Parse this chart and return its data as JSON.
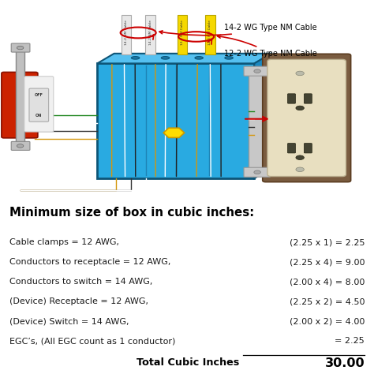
{
  "title": "Minimum size of box in cubic inches:",
  "rows": [
    {
      "label": "Cable clamps = 12 AWG,",
      "calc": "(2.25 x 1) = 2.25",
      "underline": false
    },
    {
      "label": "Conductors to receptacle = 12 AWG,",
      "calc": "(2.25 x 4) = 9.00",
      "underline": false
    },
    {
      "label": "Conductors to switch = 14 AWG,",
      "calc": "(2.00 x 4) = 8.00",
      "underline": false
    },
    {
      "label": "(Device) Receptacle = 12 AWG,",
      "calc": "(2.25 x 2) = 4.50",
      "underline": false
    },
    {
      "label": "(Device) Switch = 14 AWG,",
      "calc": "(2.00 x 2) = 4.00",
      "underline": false
    },
    {
      "label": "EGC’s, (All EGC count as 1 conductor)",
      "calc": "= 2.25",
      "underline": true
    }
  ],
  "total_label": "Total Cubic Inches",
  "total_value": "30.00",
  "cable_label1": "14-2 WG Type NM Cable",
  "cable_label2": "12-2 WG Type NM Cable",
  "bg_color": "#ffffff",
  "title_color": "#000000",
  "text_color": "#1a1a1a",
  "bold_color": "#000000",
  "box_blue": "#29aae1",
  "box_blue_dark": "#1a7aaa",
  "box_blue_edge": "#0d5577",
  "switch_red": "#cc2200",
  "cable_white": "#e8e8e8",
  "cable_yellow": "#f5d800",
  "wire_gold": "#d4960a",
  "receptacle_cream": "#e8dfc0",
  "receptacle_brown": "#7a5c40",
  "arrow_red": "#cc0000"
}
